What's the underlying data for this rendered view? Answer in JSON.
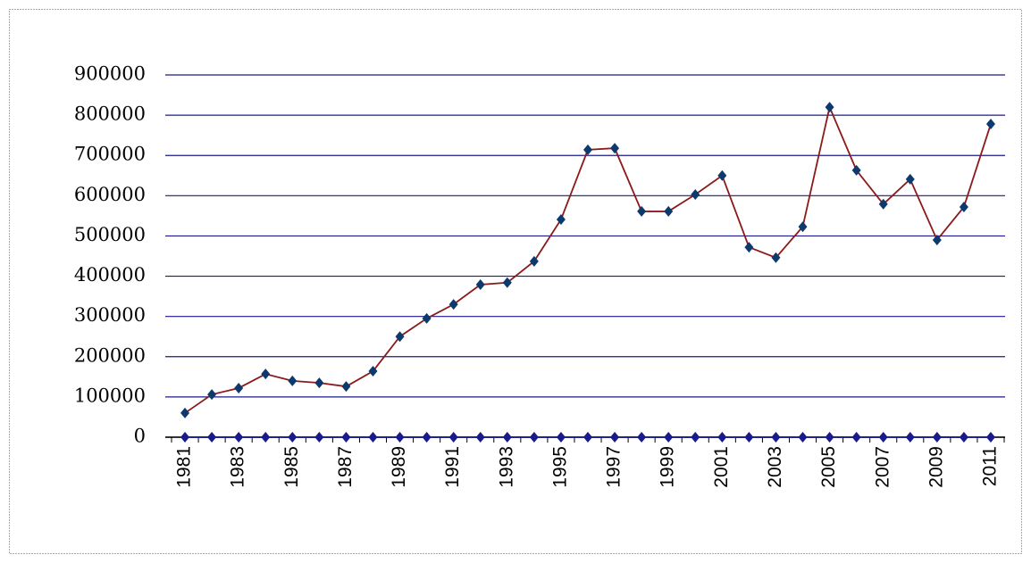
{
  "chart_data": {
    "type": "line",
    "categories": [
      "1981",
      null,
      "1983",
      null,
      "1985",
      null,
      "1987",
      null,
      "1989",
      null,
      "1991",
      null,
      "1993",
      null,
      "1995",
      null,
      "1997",
      null,
      "1999",
      null,
      "2001",
      null,
      "2003",
      null,
      "2005",
      null,
      "2007",
      null,
      "2009",
      null,
      "2011"
    ],
    "series": [
      {
        "color": "#8b1a1a",
        "marker_color": "#0d3a6e",
        "values": [
          60000,
          106000,
          122000,
          157000,
          140000,
          135000,
          126000,
          164000,
          250000,
          295000,
          330000,
          379000,
          384000,
          437000,
          541000,
          714000,
          718000,
          561000,
          561000,
          603000,
          650000,
          472000,
          446000,
          523000,
          820000,
          663000,
          579000,
          641000,
          490000,
          572000,
          778000
        ]
      },
      {
        "color": "#1a1a8c",
        "marker_color": "#1a1a8c",
        "values": [
          0,
          0,
          0,
          0,
          0,
          0,
          0,
          0,
          0,
          0,
          0,
          0,
          0,
          0,
          0,
          0,
          0,
          0,
          0,
          0,
          0,
          0,
          0,
          0,
          0,
          0,
          0,
          0,
          0,
          0,
          0
        ]
      }
    ],
    "ylim": [
      0,
      900000
    ],
    "yticks": [
      0,
      100000,
      200000,
      300000,
      400000,
      500000,
      600000,
      700000,
      800000,
      900000
    ],
    "grid": true,
    "grid_color": "#1a1a8c"
  }
}
